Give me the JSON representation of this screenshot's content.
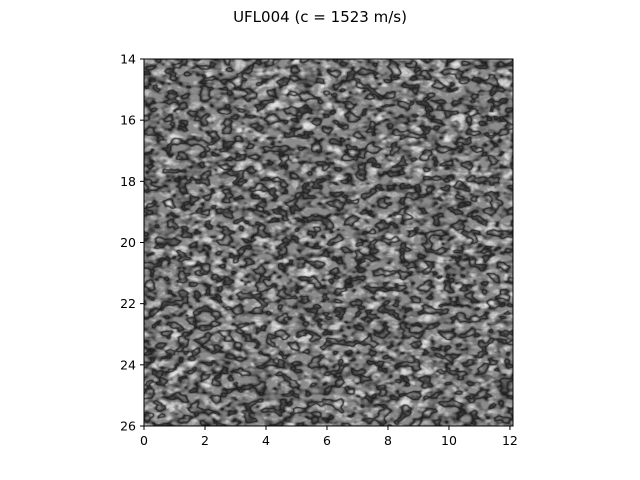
{
  "figure": {
    "title": "UFL004 (c = 1523 m/s)"
  },
  "image": {
    "description_kind": "ultrasound B-mode speckle image",
    "colormap": "gray",
    "x_range": [
      0,
      12.1
    ],
    "y_range": [
      14,
      26
    ],
    "y_inverted": true
  },
  "axes": {
    "x_ticks": [
      {
        "value": 0,
        "label": "0"
      },
      {
        "value": 2,
        "label": "2"
      },
      {
        "value": 4,
        "label": "4"
      },
      {
        "value": 6,
        "label": "6"
      },
      {
        "value": 8,
        "label": "8"
      },
      {
        "value": 10,
        "label": "10"
      },
      {
        "value": 12,
        "label": "12"
      }
    ],
    "y_ticks": [
      {
        "value": 14,
        "label": "14"
      },
      {
        "value": 16,
        "label": "16"
      },
      {
        "value": 18,
        "label": "18"
      },
      {
        "value": 20,
        "label": "20"
      },
      {
        "value": 22,
        "label": "22"
      },
      {
        "value": 24,
        "label": "24"
      },
      {
        "value": 26,
        "label": "26"
      }
    ]
  }
}
